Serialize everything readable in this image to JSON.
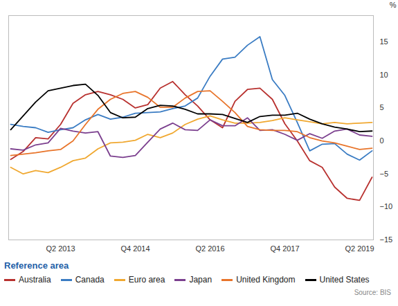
{
  "chart_data": {
    "type": "line",
    "categories": [
      null,
      null,
      null,
      null,
      "Q2 2013",
      null,
      null,
      null,
      null,
      null,
      "Q4 2014",
      null,
      null,
      null,
      null,
      null,
      "Q2 2016",
      null,
      null,
      null,
      null,
      null,
      "Q4 2017",
      null,
      null,
      null,
      null,
      null,
      "Q2 2019",
      null
    ],
    "ylabel": "%",
    "ylim": [
      -15,
      19
    ],
    "yticks": [
      -15,
      -10,
      -5,
      0,
      5,
      10,
      15
    ],
    "grid": false,
    "legend_title": "Reference area",
    "source": "Source: BIS",
    "series": [
      {
        "name": "Australia",
        "color": "#b8312f",
        "values": [
          -2.8,
          -1.6,
          0.5,
          0.3,
          2.5,
          5.7,
          7,
          7.5,
          7,
          6.3,
          5,
          5.5,
          8,
          9,
          7,
          5.3,
          3.2,
          2,
          6,
          7.8,
          8,
          6.3,
          2.6,
          0,
          -3,
          -4,
          -7,
          -8.7,
          -9,
          -5.5
        ]
      },
      {
        "name": "Canada",
        "color": "#3a7cc3",
        "values": [
          2.5,
          2.2,
          2,
          1.3,
          1.7,
          2,
          3.2,
          4,
          3.3,
          3.6,
          4.2,
          4.3,
          4.4,
          4.9,
          5.3,
          6.5,
          9.8,
          12.4,
          12.7,
          14.5,
          15.8,
          9.3,
          6.9,
          2.8,
          -1.5,
          -0.5,
          -0.4,
          -2,
          -2.9,
          -1.5
        ]
      },
      {
        "name": "Euro area",
        "color": "#f0a830",
        "values": [
          -4,
          -5,
          -4.5,
          -4.8,
          -4,
          -3,
          -2.6,
          -1.2,
          -0.3,
          -0.2,
          0.1,
          1,
          0.5,
          1.2,
          2.5,
          3.3,
          3.8,
          3.2,
          2.7,
          2.7,
          2.8,
          3.1,
          3.5,
          3.2,
          2.9,
          2.6,
          2.8,
          2.6,
          2.7,
          2.8
        ]
      },
      {
        "name": "Japan",
        "color": "#7b3f8e",
        "values": [
          -1.2,
          -1.4,
          -0.6,
          -0.3,
          1.9,
          1.5,
          1.2,
          1.4,
          -2.3,
          -2.5,
          -2.2,
          -0.2,
          1.8,
          2.7,
          1.7,
          1.6,
          3.2,
          2.3,
          2.3,
          3.5,
          1.6,
          1.7,
          1.0,
          0.1,
          1.1,
          0.4,
          1.5,
          1.8,
          0.9,
          0.7
        ]
      },
      {
        "name": "United Kingdom",
        "color": "#e8742a",
        "values": [
          -2.2,
          -2,
          -1.8,
          -1.5,
          -1.3,
          0,
          2.5,
          4.8,
          6.3,
          7.2,
          7.5,
          6.6,
          5.1,
          5.1,
          6.5,
          7.5,
          7.6,
          6,
          4.3,
          2.2,
          1.7,
          1.6,
          1.6,
          1.4,
          0.5,
          0,
          -0.3,
          -0.8,
          -1.3,
          -1.1
        ]
      },
      {
        "name": "United States",
        "color": "#000000",
        "values": [
          1.7,
          3.8,
          5.9,
          7.6,
          8,
          8.4,
          8.6,
          6.9,
          4.3,
          3.5,
          3.6,
          4.9,
          5.4,
          5.3,
          4.8,
          4.1,
          4.1,
          4,
          3.4,
          2.8,
          3.7,
          3.9,
          3.9,
          4.2,
          3.3,
          2.6,
          2.1,
          1.8,
          1.4,
          1.5
        ]
      }
    ]
  }
}
